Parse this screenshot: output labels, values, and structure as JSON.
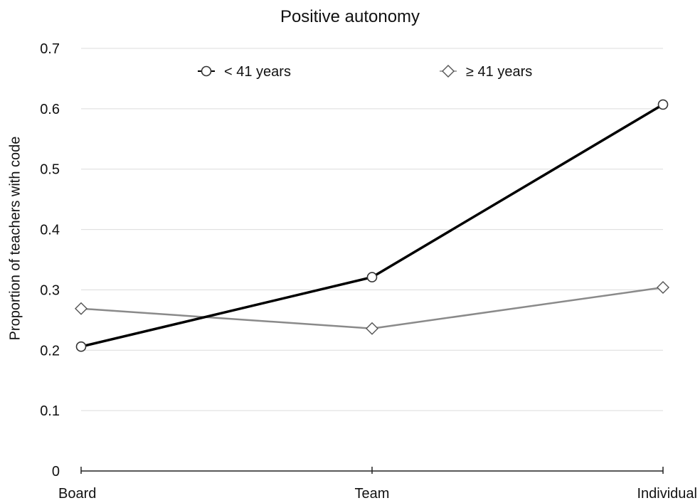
{
  "chart_data": {
    "type": "line",
    "title": "Positive autonomy",
    "xlabel": "",
    "ylabel": "Proportion of teachers with code",
    "categories": [
      "Board",
      "Team",
      "Individual"
    ],
    "ylim": [
      0,
      0.7
    ],
    "yticks": [
      "0",
      "0.1",
      "0.2",
      "0.3",
      "0.4",
      "0.5",
      "0.6",
      "0.7"
    ],
    "grid": true,
    "legend_position": "top",
    "series": [
      {
        "name": "< 41 years",
        "marker": "circle",
        "color": "#000000",
        "values": [
          0.206,
          0.321,
          0.607
        ]
      },
      {
        "name": "≥ 41 years",
        "marker": "diamond",
        "color": "#8a8a8a",
        "values": [
          0.269,
          0.236,
          0.304
        ]
      }
    ]
  }
}
